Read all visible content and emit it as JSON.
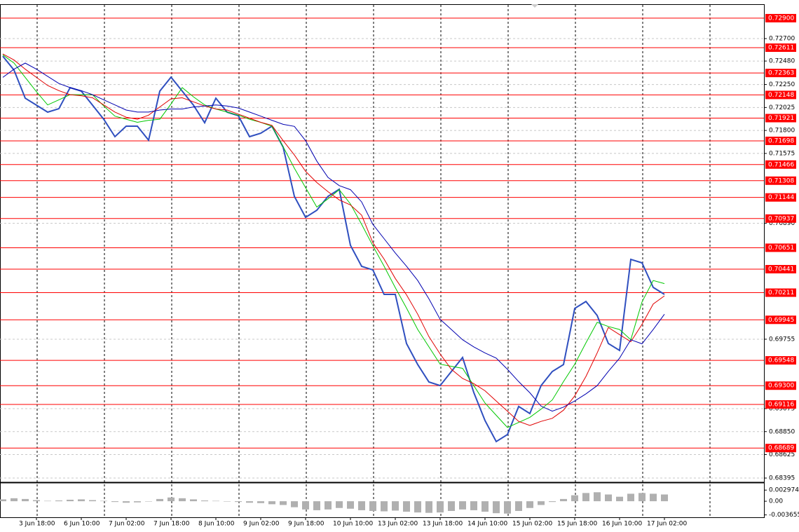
{
  "chart_data": {
    "type": "line",
    "categories": [
      null,
      null,
      null,
      "3 Jun 18:00",
      null,
      null,
      null,
      "6 Jun 10:00",
      null,
      null,
      null,
      "7 Jun 02:00",
      null,
      null,
      null,
      "7 Jun 18:00",
      null,
      null,
      null,
      "8 Jun 10:00",
      null,
      null,
      null,
      "9 Jun 02:00",
      null,
      null,
      null,
      "9 Jun 18:00",
      null,
      null,
      null,
      "10 Jun 10:00",
      null,
      null,
      null,
      "13 Jun 02:00",
      null,
      null,
      null,
      "13 Jun 18:00",
      null,
      null,
      null,
      "14 Jun 10:00",
      null,
      null,
      null,
      "15 Jun 02:00",
      null,
      null,
      null,
      "15 Jun 18:00",
      null,
      null,
      null,
      "16 Jun 10:00",
      null,
      null,
      null,
      "17 Jun 02:00"
    ],
    "series": [
      {
        "color": "#2f4fbf",
        "width": 2,
        "values": [
          0.72528,
          0.72391,
          0.72116,
          0.72048,
          0.71979,
          0.72013,
          0.72219,
          0.72185,
          0.72048,
          0.7191,
          0.71739,
          0.71842,
          0.71842,
          0.71705,
          0.72185,
          0.72322,
          0.72185,
          0.72048,
          0.71876,
          0.72116,
          0.71979,
          0.71945,
          0.71739,
          0.71773,
          0.71842,
          0.71636,
          0.71155,
          0.70949,
          0.71018,
          0.71155,
          0.71224,
          0.70675,
          0.70469,
          0.70434,
          0.70194,
          0.70194,
          0.69713,
          0.69507,
          0.69336,
          0.69301,
          0.69439,
          0.69576,
          0.69233,
          0.68958,
          0.68752,
          0.68821,
          0.69096,
          0.69027,
          0.69301,
          0.69439,
          0.69507,
          0.70057,
          0.70125,
          0.69988,
          0.69713,
          0.69645,
          0.70537,
          0.70503,
          0.70263,
          0.70194
        ]
      },
      {
        "color": "#00c800",
        "width": 1,
        "values": [
          0.7254,
          0.7246,
          0.7232,
          0.7218,
          0.7205,
          0.721,
          0.7215,
          0.7215,
          0.7215,
          0.7204,
          0.7194,
          0.7191,
          0.7188,
          0.719,
          0.7191,
          0.7206,
          0.7222,
          0.7213,
          0.7205,
          0.7201,
          0.7198,
          0.7195,
          0.7191,
          0.7188,
          0.7184,
          0.7164,
          0.7143,
          0.7124,
          0.7105,
          0.7113,
          0.7122,
          0.7108,
          0.7088,
          0.7067,
          0.7047,
          0.7026,
          0.7006,
          0.6985,
          0.6968,
          0.6951,
          0.6949,
          0.6947,
          0.693,
          0.6913,
          0.6901,
          0.6889,
          0.6894,
          0.6899,
          0.6907,
          0.6916,
          0.6934,
          0.6951,
          0.6972,
          0.6992,
          0.6988,
          0.6985,
          0.6975,
          0.7012,
          0.7033,
          0.703
        ]
      },
      {
        "color": "#e00000",
        "width": 1,
        "values": [
          0.7255,
          0.7249,
          0.724,
          0.7232,
          0.7224,
          0.7219,
          0.7215,
          0.7214,
          0.7212,
          0.7205,
          0.7198,
          0.7193,
          0.7191,
          0.7195,
          0.7203,
          0.7211,
          0.7212,
          0.7208,
          0.7204,
          0.7201,
          0.72,
          0.7196,
          0.7192,
          0.7188,
          0.7185,
          0.717,
          0.7156,
          0.714,
          0.7129,
          0.712,
          0.7112,
          0.7107,
          0.7097,
          0.707,
          0.7054,
          0.7035,
          0.7019,
          0.7,
          0.6978,
          0.6961,
          0.6946,
          0.6937,
          0.6932,
          0.6925,
          0.6915,
          0.6905,
          0.6895,
          0.6891,
          0.6895,
          0.6898,
          0.6906,
          0.692,
          0.6939,
          0.6962,
          0.6987,
          0.698,
          0.6973,
          0.699,
          0.701,
          0.7018
        ]
      },
      {
        "color": "#0000b0",
        "width": 1,
        "values": [
          0.7232,
          0.724,
          0.7246,
          0.724,
          0.7233,
          0.7226,
          0.7222,
          0.7219,
          0.7215,
          0.721,
          0.7205,
          0.72,
          0.7198,
          0.7198,
          0.72,
          0.7201,
          0.7201,
          0.7203,
          0.7204,
          0.7205,
          0.7204,
          0.7202,
          0.7198,
          0.7194,
          0.719,
          0.7186,
          0.7184,
          0.717,
          0.715,
          0.7134,
          0.7126,
          0.7122,
          0.711,
          0.7088,
          0.7074,
          0.706,
          0.7047,
          0.7033,
          0.7015,
          0.6995,
          0.6985,
          0.6975,
          0.6968,
          0.6962,
          0.6957,
          0.6946,
          0.6934,
          0.6923,
          0.691,
          0.6905,
          0.6909,
          0.6915,
          0.6922,
          0.693,
          0.6944,
          0.6957,
          0.6975,
          0.6971,
          0.6985,
          0.7
        ]
      }
    ],
    "ylim": [
      0.68354,
      0.73023
    ],
    "yticks": [
      {
        "value": 0.727,
        "label": "0.72700"
      },
      {
        "value": 0.7248,
        "label": "0.72480"
      },
      {
        "value": 0.7225,
        "label": "0.72250"
      },
      {
        "value": 0.72025,
        "label": "0.72025"
      },
      {
        "value": 0.718,
        "label": "0.71800"
      },
      {
        "value": 0.71575,
        "label": "0.71575"
      },
      {
        "value": 0.7089,
        "label": "0.70890"
      },
      {
        "value": 0.69755,
        "label": "0.69755"
      },
      {
        "value": 0.69075,
        "label": "0.69075"
      },
      {
        "value": 0.6885,
        "label": "0.68850"
      },
      {
        "value": 0.68625,
        "label": "0.68625"
      },
      {
        "value": 0.68395,
        "label": "0.68395"
      }
    ],
    "levels_color": "#ff0000",
    "levels": [
      {
        "value": 0.729,
        "label": "0.72900"
      },
      {
        "value": 0.72611,
        "label": "0.72611"
      },
      {
        "value": 0.72363,
        "label": "0.72363"
      },
      {
        "value": 0.72148,
        "label": "0.72148"
      },
      {
        "value": 0.71921,
        "label": "0.71921"
      },
      {
        "value": 0.71698,
        "label": "0.71698"
      },
      {
        "value": 0.71466,
        "label": "0.71466"
      },
      {
        "value": 0.71308,
        "label": "0.71308"
      },
      {
        "value": 0.71144,
        "label": "0.71144"
      },
      {
        "value": 0.70937,
        "label": "0.70937"
      },
      {
        "value": 0.70651,
        "label": "0.70651"
      },
      {
        "value": 0.70441,
        "label": "0.70441"
      },
      {
        "value": 0.70211,
        "label": "0.70211"
      },
      {
        "value": 0.69945,
        "label": "0.69945"
      },
      {
        "value": 0.69548,
        "label": "0.69548"
      },
      {
        "value": 0.693,
        "label": "0.69300"
      },
      {
        "value": 0.69116,
        "label": "0.69116"
      },
      {
        "value": 0.68689,
        "label": "0.68689"
      }
    ],
    "oscillator": {
      "color": "#b0b0b0",
      "values": [
        0.0005,
        0.0008,
        0.0006,
        0.0003,
        0.0001,
        0.0002,
        0.0004,
        0.0005,
        0.0003,
        0.0001,
        -0.0002,
        -0.0004,
        -0.0003,
        0,
        0.0006,
        0.001,
        0.0008,
        0.0005,
        0.0002,
        0.0001,
        0,
        -0.0002,
        -0.0004,
        -0.0005,
        -0.0008,
        -0.001,
        -0.0016,
        -0.0022,
        -0.0024,
        -0.0022,
        -0.0018,
        -0.002,
        -0.0024,
        -0.0026,
        -0.0027,
        -0.0025,
        -0.0028,
        -0.003,
        -0.0031,
        -0.003,
        -0.0026,
        -0.0022,
        -0.0024,
        -0.0028,
        -0.0032,
        -0.0033,
        -0.0026,
        -0.0018,
        -0.001,
        -0.0002,
        0.0006,
        0.0016,
        0.0022,
        0.0024,
        0.0018,
        0.0012,
        0.002,
        0.0022,
        0.002,
        0.0018
      ],
      "ylim": [
        -0.0041,
        0.0047
      ],
      "yticks": [
        0.002974,
        {
          "value": 0,
          "label": "0.00"
        },
        -0.003655
      ]
    }
  }
}
